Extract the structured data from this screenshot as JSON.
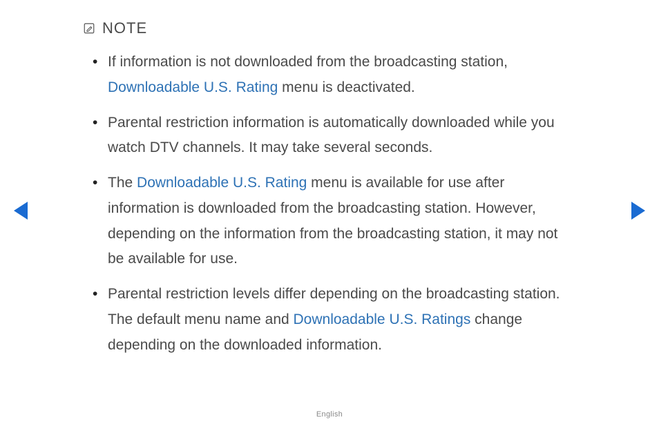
{
  "note": {
    "label": "NOTE",
    "icon_name": "note-pencil-icon",
    "icon_stroke": "#555555"
  },
  "highlight_color": "#2e72b5",
  "text_color": "#4a4a4a",
  "arrow_color": "#1a6bd2",
  "bullets": [
    {
      "segments": [
        {
          "t": "If information is not downloaded from the broadcasting station, "
        },
        {
          "t": "Downloadable U.S. Rating",
          "hl": true
        },
        {
          "t": " menu is deactivated."
        }
      ]
    },
    {
      "segments": [
        {
          "t": "Parental restriction information is automatically downloaded while you watch DTV channels. It may take several seconds."
        }
      ]
    },
    {
      "segments": [
        {
          "t": "The "
        },
        {
          "t": "Downloadable U.S. Rating",
          "hl": true
        },
        {
          "t": " menu is available for use after information is downloaded from the broadcasting station. However, depending on the information from the broadcasting station, it may not be available for use."
        }
      ]
    },
    {
      "segments": [
        {
          "t": "Parental restriction levels differ depending on the broadcasting station. The default menu name and "
        },
        {
          "t": "Downloadable U.S. Ratings",
          "hl": true
        },
        {
          "t": " change depending on the downloaded information."
        }
      ]
    }
  ],
  "footer": {
    "language": "English"
  }
}
